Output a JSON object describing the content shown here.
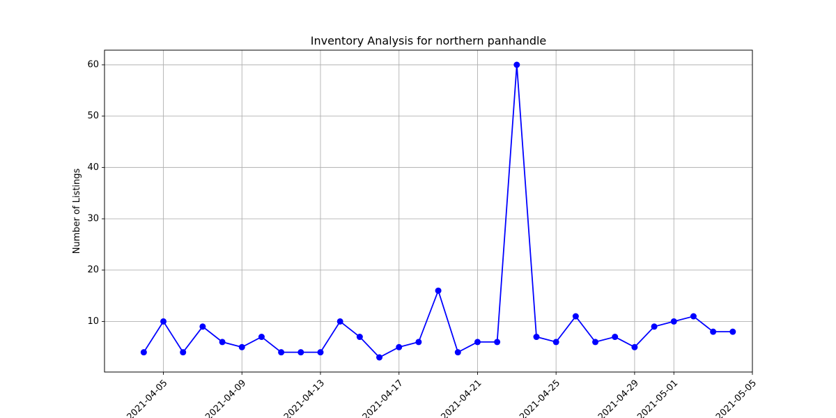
{
  "chart_data": {
    "type": "line",
    "title": "Inventory Analysis for northern panhandle",
    "xlabel": "",
    "ylabel": "Number of Listings",
    "x": [
      "2021-04-04",
      "2021-04-05",
      "2021-04-06",
      "2021-04-07",
      "2021-04-08",
      "2021-04-09",
      "2021-04-10",
      "2021-04-11",
      "2021-04-12",
      "2021-04-13",
      "2021-04-14",
      "2021-04-15",
      "2021-04-16",
      "2021-04-17",
      "2021-04-18",
      "2021-04-19",
      "2021-04-20",
      "2021-04-21",
      "2021-04-22",
      "2021-04-23",
      "2021-04-24",
      "2021-04-25",
      "2021-04-26",
      "2021-04-27",
      "2021-04-28",
      "2021-04-29",
      "2021-04-30",
      "2021-05-01",
      "2021-05-02",
      "2021-05-03",
      "2021-05-04"
    ],
    "series": [
      {
        "values": [
          4,
          10,
          4,
          9,
          6,
          5,
          7,
          4,
          4,
          4,
          10,
          7,
          3,
          5,
          6,
          16,
          4,
          6,
          6,
          60,
          7,
          6,
          11,
          6,
          7,
          5,
          9,
          10,
          11,
          8,
          8
        ],
        "color": "#0000ff",
        "marker": "circle"
      }
    ],
    "x_ticks": [
      "2021-04-05",
      "2021-04-09",
      "2021-04-13",
      "2021-04-17",
      "2021-04-21",
      "2021-04-25",
      "2021-04-29",
      "2021-05-01",
      "2021-05-05"
    ],
    "y_ticks": [
      10,
      20,
      30,
      40,
      50,
      60
    ],
    "xlim": [
      "2021-04-02",
      "2021-05-05"
    ],
    "ylim": [
      0.15,
      62.85
    ],
    "grid": true,
    "legend": "none"
  }
}
